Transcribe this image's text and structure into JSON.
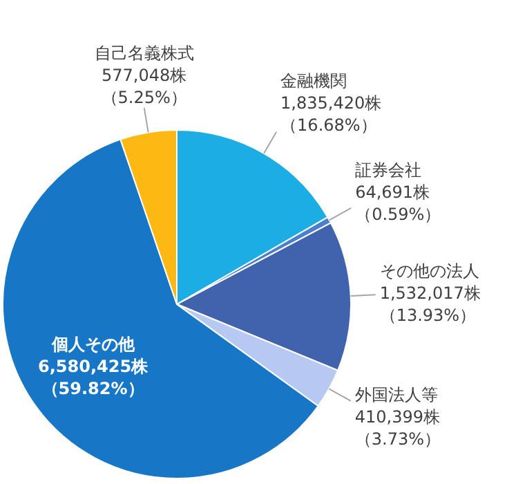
{
  "chart_data": {
    "type": "pie",
    "categories": [
      "金融機関",
      "証券会社",
      "その他の法人",
      "外国法人等",
      "個人その他",
      "自己名義株式"
    ],
    "values": [
      16.68,
      0.59,
      13.93,
      3.73,
      59.82,
      5.25
    ],
    "colors": [
      "#1cade4",
      "#4a7fd0",
      "#4163ae",
      "#b7c9f2",
      "#1777c6",
      "#fdb813"
    ],
    "value_labels": [
      "1,835,420株（16.68%）",
      "64,691株（0.59%）",
      "1,532,017株（13.93%）",
      "410,399株（3.73%）",
      "6,580,425株（59.82%）",
      "577,048株（5.25%）"
    ]
  }
}
